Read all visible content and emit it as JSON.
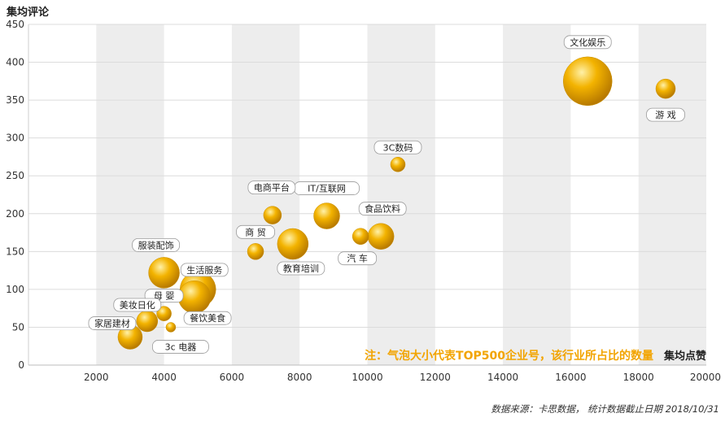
{
  "chart_data": {
    "type": "scatter",
    "subtype": "bubble",
    "xlabel": "集均点赞",
    "ylabel": "集均评论",
    "xlim": [
      0,
      20000
    ],
    "ylim": [
      0,
      450
    ],
    "x_ticks": [
      "2000",
      "4000",
      "6000",
      "8000",
      "10000",
      "12000",
      "14000",
      "16000",
      "18000",
      "20000"
    ],
    "y_ticks": [
      "0",
      "50",
      "100",
      "150",
      "200",
      "250",
      "300",
      "350",
      "400",
      "450"
    ],
    "grid": true,
    "bubble_color": "#f3b300",
    "note": "注：气泡大小代表TOP500企业号，该行业所占比的数量",
    "source": "数据来源：卡思数据， 统计数据截止日期 2018/10/31",
    "points": [
      {
        "label": "文化娱乐",
        "x": 16500,
        "y": 375,
        "size": 30
      },
      {
        "label": "游 戏",
        "x": 18800,
        "y": 365,
        "size": 12
      },
      {
        "label": "3C数码",
        "x": 10900,
        "y": 265,
        "size": 9
      },
      {
        "label": "IT/互联网",
        "x": 8800,
        "y": 197,
        "size": 16
      },
      {
        "label": "电商平台",
        "x": 7200,
        "y": 198,
        "size": 11
      },
      {
        "label": "食品饮料",
        "x": 10400,
        "y": 170,
        "size": 16
      },
      {
        "label": "汽 车",
        "x": 9800,
        "y": 170,
        "size": 10
      },
      {
        "label": "商 贸",
        "x": 6700,
        "y": 150,
        "size": 10
      },
      {
        "label": "教育培训",
        "x": 7800,
        "y": 160,
        "size": 19
      },
      {
        "label": "服装配饰",
        "x": 4000,
        "y": 122,
        "size": 19
      },
      {
        "label": "生活服务",
        "x": 5000,
        "y": 100,
        "size": 22
      },
      {
        "label": "餐饮美食",
        "x": 4900,
        "y": 90,
        "size": 20
      },
      {
        "label": "母 婴",
        "x": 4000,
        "y": 68,
        "size": 9
      },
      {
        "label": "美妆日化",
        "x": 3500,
        "y": 58,
        "size": 13
      },
      {
        "label": "家居建材",
        "x": 3000,
        "y": 37,
        "size": 15
      },
      {
        "label": "3c 电器",
        "x": 4200,
        "y": 50,
        "size": 6
      }
    ]
  }
}
